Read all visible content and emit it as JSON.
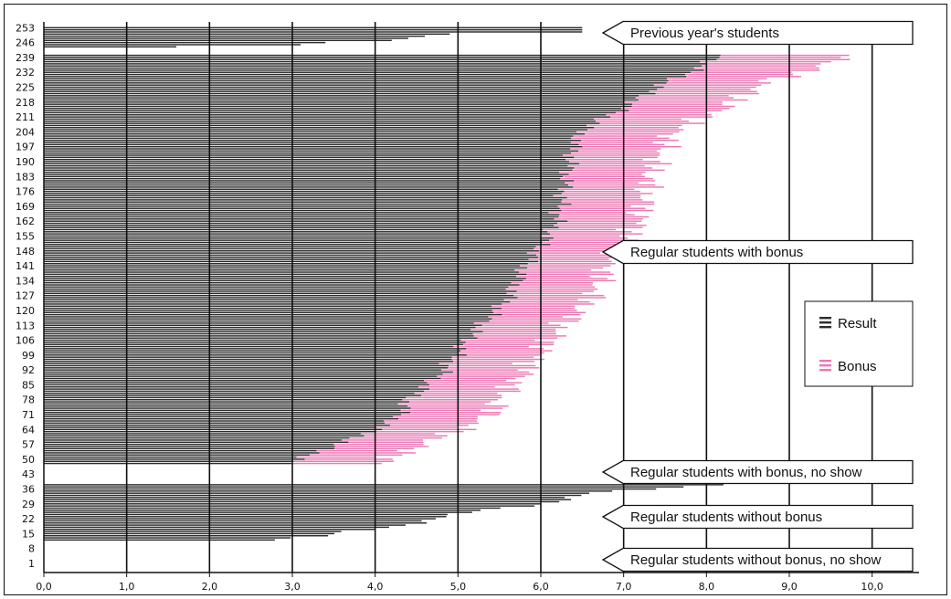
{
  "chart_data": {
    "type": "bar",
    "orientation": "horizontal",
    "stacked": true,
    "xlim": [
      0,
      10.5
    ],
    "x_ticks": [
      "0,0",
      "1,0",
      "2,0",
      "3,0",
      "4,0",
      "5,0",
      "6,0",
      "7,0",
      "8,0",
      "9,0",
      "10,0"
    ],
    "y_ticks": [
      "253",
      "246",
      "239",
      "232",
      "225",
      "218",
      "211",
      "204",
      "197",
      "190",
      "183",
      "176",
      "169",
      "162",
      "155",
      "148",
      "141",
      "134",
      "127",
      "120",
      "113",
      "106",
      "99",
      "92",
      "85",
      "78",
      "71",
      "64",
      "57",
      "50",
      "43",
      "36",
      "29",
      "22",
      "15",
      "8",
      "1"
    ],
    "legend": {
      "position": "right",
      "items": [
        "Result",
        "Bonus"
      ]
    },
    "colors": {
      "result": "#2b2b2b",
      "bonus": "#ec77b5",
      "axis": "#111111"
    },
    "annotations": [
      "Previous year's students",
      "Regular students with bonus",
      "Regular students with bonus, no show",
      "Regular students without bonus",
      "Regular students without bonus, no show"
    ],
    "groups": [
      {
        "name": "Previous year's students",
        "y_from": 244,
        "y_to": 254,
        "result": [
          1.6,
          3.1,
          3.4,
          4.2,
          4.4,
          4.6,
          4.9,
          6.5,
          6.5,
          6.5
        ]
      },
      {
        "name": "Regular students with bonus",
        "y_from": 48,
        "y_to": 240,
        "result": [
          [
            48,
            3.0
          ],
          [
            55,
            3.4
          ],
          [
            62,
            3.9
          ],
          [
            70,
            4.3
          ],
          [
            78,
            4.4
          ],
          [
            90,
            4.8
          ],
          [
            100,
            5.0
          ],
          [
            110,
            5.2
          ],
          [
            125,
            5.6
          ],
          [
            140,
            5.8
          ],
          [
            150,
            6.0
          ],
          [
            162,
            6.2
          ],
          [
            180,
            6.3
          ],
          [
            197,
            6.4
          ],
          [
            205,
            6.5
          ],
          [
            215,
            7.0
          ],
          [
            225,
            7.4
          ],
          [
            232,
            7.8
          ],
          [
            240,
            8.2
          ]
        ],
        "bonus": [
          [
            48,
            1.1
          ],
          [
            60,
            1.0
          ],
          [
            75,
            1.1
          ],
          [
            90,
            1.0
          ],
          [
            110,
            1.0
          ],
          [
            125,
            1.0
          ],
          [
            140,
            1.0
          ],
          [
            155,
            1.0
          ],
          [
            170,
            1.0
          ],
          [
            185,
            1.0
          ],
          [
            200,
            1.1
          ],
          [
            215,
            1.2
          ],
          [
            228,
            1.2
          ],
          [
            240,
            1.6
          ]
        ]
      },
      {
        "name": "Regular students with bonus, no show",
        "y_from": 40,
        "y_to": 47,
        "result": []
      },
      {
        "name": "Regular students without bonus",
        "y_from": 12,
        "y_to": 38,
        "result": [
          [
            12,
            2.7
          ],
          [
            14,
            3.4
          ],
          [
            16,
            3.7
          ],
          [
            18,
            4.2
          ],
          [
            20,
            4.5
          ],
          [
            22,
            4.7
          ],
          [
            24,
            5.0
          ],
          [
            26,
            5.3
          ],
          [
            28,
            5.8
          ],
          [
            30,
            6.2
          ],
          [
            32,
            6.4
          ],
          [
            34,
            6.6
          ],
          [
            36,
            7.3
          ],
          [
            37,
            7.7
          ],
          [
            38,
            8.2
          ]
        ]
      },
      {
        "name": "Regular students without bonus, no show",
        "y_from": 1,
        "y_to": 11,
        "result": []
      }
    ]
  }
}
